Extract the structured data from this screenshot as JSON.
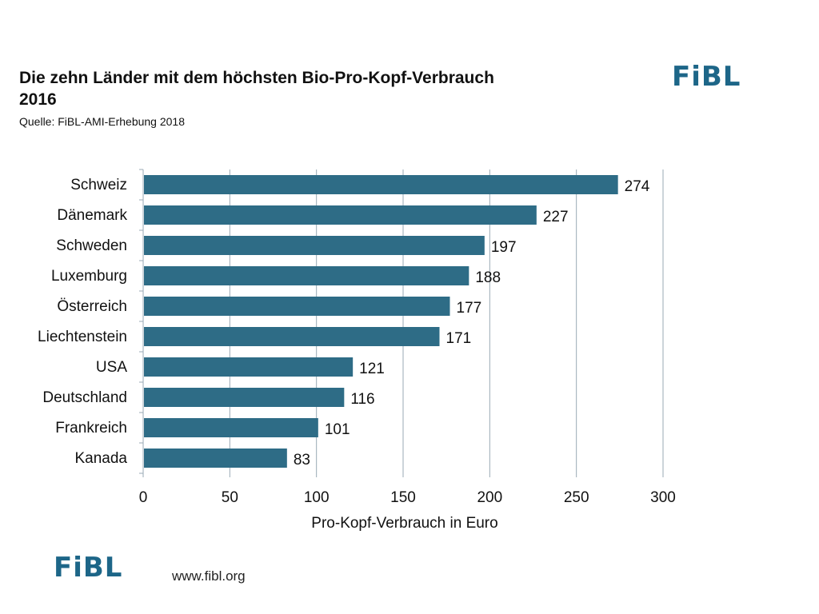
{
  "header": {
    "title": "Die zehn Länder mit dem höchsten Bio-Pro-Kopf-Verbrauch 2016",
    "source": "Quelle: FiBL-AMI-Erhebung 2018",
    "logo_text": "FiBL"
  },
  "footer": {
    "logo_text": "FiBL",
    "website": "www.fibl.org"
  },
  "colors": {
    "bar": "#2e6c86",
    "logo": "#1d6688",
    "grid": "#9aaab5"
  },
  "chart_data": {
    "type": "bar",
    "orientation": "horizontal",
    "categories": [
      "Schweiz",
      "Dänemark",
      "Schweden",
      "Luxemburg",
      "Österreich",
      "Liechtenstein",
      "USA",
      "Deutschland",
      "Frankreich",
      "Kanada"
    ],
    "values": [
      274,
      227,
      197,
      188,
      177,
      171,
      121,
      116,
      101,
      83
    ],
    "xlabel": "Pro-Kopf-Verbrauch in Euro",
    "xlim": [
      0,
      300
    ],
    "xticks": [
      "0",
      "50",
      "100",
      "150",
      "200",
      "250",
      "300"
    ],
    "grid": "vertical",
    "data_labels": true
  }
}
